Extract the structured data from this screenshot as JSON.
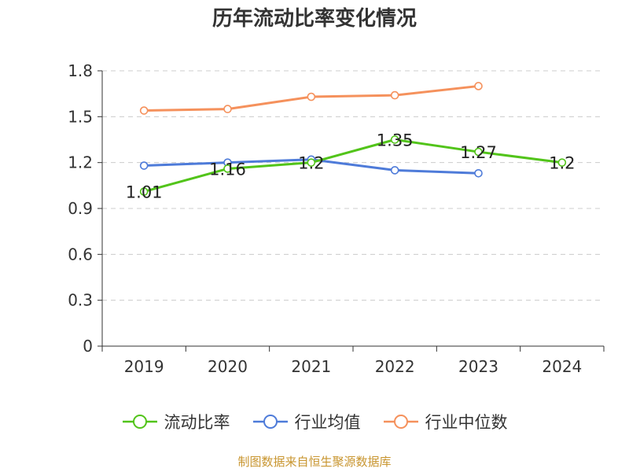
{
  "title": "历年流动比率变化情况",
  "source": "制图数据来自恒生聚源数据库",
  "colors": {
    "current_ratio": "#52c41a",
    "industry_avg": "#4e7bd9",
    "industry_median": "#f5915c",
    "grid": "#cccccc",
    "axis": "#333333"
  },
  "chart_data": {
    "type": "line",
    "categories": [
      "2019",
      "2020",
      "2021",
      "2022",
      "2023",
      "2024"
    ],
    "ylim": [
      0,
      1.8
    ],
    "yticks": [
      "0",
      "0.3",
      "0.6",
      "0.9",
      "1.2",
      "1.5",
      "1.8"
    ],
    "grid": true,
    "legend_position": "bottom",
    "series": [
      {
        "name": "流动比率",
        "color": "#52c41a",
        "labels": true,
        "values": [
          1.01,
          1.16,
          1.2,
          1.35,
          1.27,
          1.2
        ]
      },
      {
        "name": "行业均值",
        "color": "#4e7bd9",
        "labels": false,
        "values": [
          1.18,
          1.2,
          1.22,
          1.15,
          1.13,
          null
        ]
      },
      {
        "name": "行业中位数",
        "color": "#f5915c",
        "labels": false,
        "values": [
          1.54,
          1.55,
          1.63,
          1.64,
          1.7,
          null
        ]
      }
    ]
  }
}
